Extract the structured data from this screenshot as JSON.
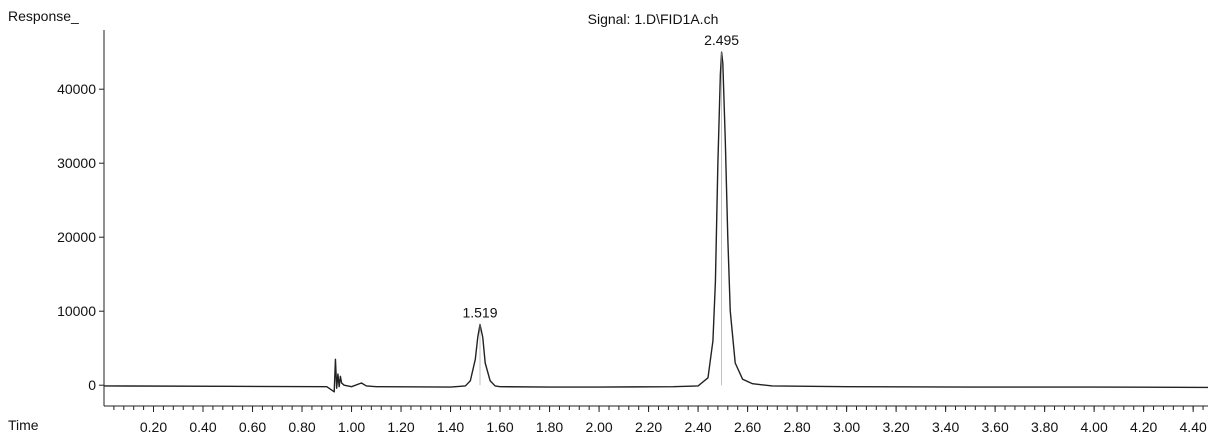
{
  "chart_data": {
    "type": "line",
    "title": "Signal: 1.D\\FID1A.ch",
    "ylabel": "Response_",
    "xlabel": "Time",
    "xlim": [
      0.0,
      4.46
    ],
    "ylim": [
      -2000,
      48000
    ],
    "xticks": [
      "0.20",
      "0.40",
      "0.60",
      "0.80",
      "1.00",
      "1.20",
      "1.40",
      "1.60",
      "1.80",
      "2.00",
      "2.20",
      "2.40",
      "2.60",
      "2.80",
      "3.00",
      "3.20",
      "3.40",
      "3.60",
      "3.80",
      "4.00",
      "4.20",
      "4.40"
    ],
    "yticks": [
      "0",
      "10000",
      "20000",
      "30000",
      "40000"
    ],
    "series": [
      {
        "x": [
          0.0,
          0.5,
          0.9,
          0.93,
          0.935,
          0.94,
          0.945,
          0.95,
          0.955,
          0.96,
          0.97,
          1.0,
          1.04,
          1.06,
          1.1,
          1.4,
          1.46,
          1.48,
          1.5,
          1.51,
          1.519,
          1.53,
          1.54,
          1.56,
          1.58,
          1.6,
          1.8,
          2.0,
          2.3,
          2.4,
          2.44,
          2.46,
          2.47,
          2.48,
          2.49,
          2.495,
          2.5,
          2.51,
          2.52,
          2.53,
          2.55,
          2.58,
          2.62,
          2.7,
          3.0,
          3.5,
          4.0,
          4.46
        ],
        "y": [
          -100,
          -150,
          -200,
          -900,
          3500,
          -400,
          1500,
          -200,
          1200,
          300,
          0,
          -200,
          300,
          -100,
          -200,
          -250,
          -100,
          600,
          3500,
          6500,
          8200,
          6500,
          3000,
          600,
          -100,
          -200,
          -250,
          -250,
          -200,
          -100,
          1000,
          6000,
          14000,
          30000,
          42000,
          45000,
          43500,
          33000,
          20000,
          10000,
          3000,
          800,
          200,
          -100,
          -200,
          -250,
          -250,
          -300
        ],
        "color": "#222222"
      }
    ],
    "peak_labels": [
      {
        "x": 1.519,
        "y": 8200,
        "text": "1.519"
      },
      {
        "x": 2.495,
        "y": 45000,
        "text": "2.495"
      }
    ],
    "grid": false
  }
}
